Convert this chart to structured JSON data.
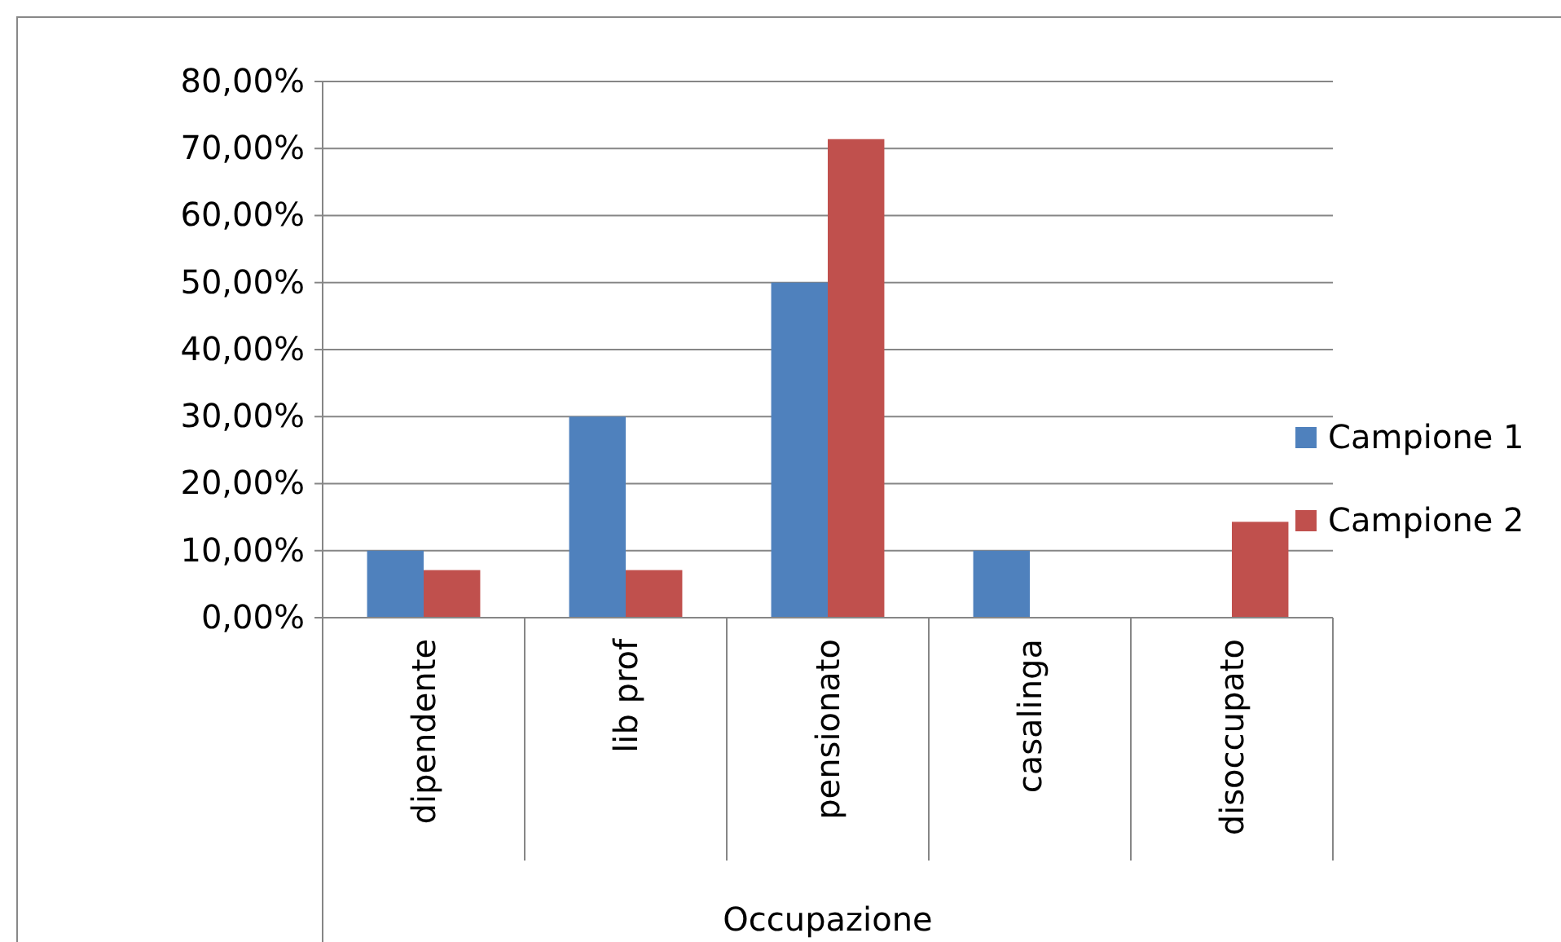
{
  "chart_data": {
    "type": "bar",
    "xlabel": "Occupazione",
    "categories": [
      "dipendente",
      "lib prof",
      "pensionato",
      "casalinga",
      "disoccupato"
    ],
    "series": [
      {
        "name": "Campione 1",
        "color": "#4f81bd",
        "values": [
          10,
          30,
          50,
          10,
          0
        ]
      },
      {
        "name": "Campione 2",
        "color": "#c0504d",
        "values": [
          7.1,
          7.1,
          71.4,
          0,
          14.3
        ]
      }
    ],
    "ylim": [
      0,
      80
    ],
    "yticks": [
      {
        "value": 0,
        "label": "0,00%"
      },
      {
        "value": 10,
        "label": "10,00%"
      },
      {
        "value": 20,
        "label": "20,00%"
      },
      {
        "value": 30,
        "label": "30,00%"
      },
      {
        "value": 40,
        "label": "40,00%"
      },
      {
        "value": 50,
        "label": "50,00%"
      },
      {
        "value": 60,
        "label": "60,00%"
      },
      {
        "value": 70,
        "label": "70,00%"
      },
      {
        "value": 80,
        "label": "80,00%"
      }
    ],
    "grid": "y",
    "legend": "right"
  }
}
